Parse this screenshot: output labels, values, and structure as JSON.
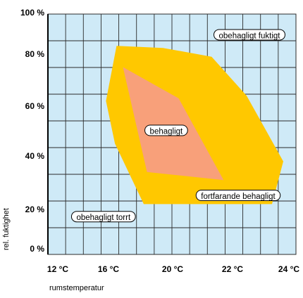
{
  "chart_data": {
    "type": "area",
    "xlabel": "rumstemperatur",
    "ylabel": "rel. fuktighet",
    "x_ticks": [
      "12 °C",
      "16 °C",
      "20 °C",
      "22 °C",
      "24 °C"
    ],
    "y_ticks": [
      "0 %",
      "20 %",
      "40 %",
      "60 %",
      "80 %",
      "100 %"
    ],
    "ylim": [
      0,
      100
    ],
    "grid": true,
    "colors": {
      "background": "#cfeaf7",
      "grid": "#2b2b2b",
      "outer_zone": "#ffc800",
      "inner_zone": "#f8a07a"
    },
    "zones": [
      {
        "name": "fortfarande behagligt",
        "color": "#ffc800",
        "points": [
          [
            16.5,
            84
          ],
          [
            19.4,
            83
          ],
          [
            21.3,
            79
          ],
          [
            22.5,
            64
          ],
          [
            23.8,
            38
          ],
          [
            23.4,
            22
          ],
          [
            18.2,
            22
          ],
          [
            16.4,
            45
          ],
          [
            15.8,
            62
          ]
        ]
      },
      {
        "name": "behagligt",
        "color": "#f8a07a",
        "points": [
          [
            16.9,
            75
          ],
          [
            20.2,
            63
          ],
          [
            21.7,
            31
          ],
          [
            18.4,
            34
          ]
        ]
      }
    ],
    "annotations": [
      {
        "text": "obehagligt fuktigt",
        "x": 22.6,
        "y": 89
      },
      {
        "text": "behagligt",
        "x": 19.6,
        "y": 50
      },
      {
        "text": "fortfarande behagligt",
        "x": 22.2,
        "y": 25
      },
      {
        "text": "obehagligt torrt",
        "x": 15.6,
        "y": 16
      }
    ]
  }
}
